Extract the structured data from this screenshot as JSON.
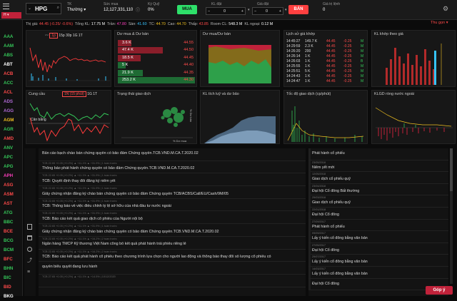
{
  "colors": {
    "up": "#35c759",
    "down": "#ff4a4a",
    "ref": "#f0c020",
    "ceil": "#ff3fbe",
    "floor": "#36c4ff",
    "buy": "#2ee06a",
    "sell": "#ff4040"
  },
  "topbar": {
    "menu_icon": "hamburger-icon",
    "tab_short": "H",
    "symbol": "HPG",
    "tk_label": "TK",
    "tk_value": "Thường",
    "suc_mua_label": "Sức mua",
    "suc_mua_value": "12,127,331,110",
    "ky_quy_label": "Ký Quỹ",
    "ky_quy_value": "0%",
    "buy_label": "MUA",
    "kl_dat_label": "KL đặt",
    "kl_dat_value": "0",
    "gia_dat_label": "Giá đặt",
    "gia_dat_value": "0",
    "sell_label": "BÁN",
    "gia_tri_label": "Giá trị lệnh",
    "gia_tri_value": "0"
  },
  "watchlist": [
    {
      "s": "AAA",
      "c": "g"
    },
    {
      "s": "AAM",
      "c": "g"
    },
    {
      "s": "ABS",
      "c": "g"
    },
    {
      "s": "ABT",
      "c": "w"
    },
    {
      "s": "ACB",
      "c": "r"
    },
    {
      "s": "ACC",
      "c": "g"
    },
    {
      "s": "ACL",
      "c": "r"
    },
    {
      "s": "ADS",
      "c": "pu"
    },
    {
      "s": "AGG",
      "c": "pu"
    },
    {
      "s": "AGM",
      "c": "y"
    },
    {
      "s": "AGR",
      "c": "g"
    },
    {
      "s": "AMD",
      "c": "r"
    },
    {
      "s": "ANV",
      "c": "g"
    },
    {
      "s": "APC",
      "c": "g"
    },
    {
      "s": "APG",
      "c": "g"
    },
    {
      "s": "APH",
      "c": "pk"
    },
    {
      "s": "ASG",
      "c": "r"
    },
    {
      "s": "ASM",
      "c": "r"
    },
    {
      "s": "AST",
      "c": "r"
    },
    {
      "s": "ATG",
      "c": "g"
    },
    {
      "s": "BBC",
      "c": "g"
    },
    {
      "s": "BCE",
      "c": "r"
    },
    {
      "s": "BCG",
      "c": "g"
    },
    {
      "s": "BCM",
      "c": "g"
    },
    {
      "s": "BFC",
      "c": "r"
    },
    {
      "s": "BHN",
      "c": "g"
    },
    {
      "s": "BIC",
      "c": "g"
    },
    {
      "s": "BID",
      "c": "r"
    },
    {
      "s": "BKG",
      "c": "w"
    }
  ],
  "status": {
    "gia_label": "Thị giá:",
    "gia_value": "44.45 (-0.25/ -0.6%)",
    "ck_label": "Thống kê:",
    "tkl_label": "Tổng KL:",
    "tkl_value": "17.75 M",
    "ttb_label": "Trần:",
    "ttb_value": "47.80",
    "sam_label": "Sàn:",
    "sam_value": "41.60",
    "tc_label": "TC:",
    "tc_value": "44.70",
    "cao_label": "Cao:",
    "cao_value": "44.70",
    "thap_label": "Thấp:",
    "thap_value": "43.85",
    "room_label": "Room CL:",
    "room_value": "548.3 M",
    "kl_ngoai_label": "KL ngoại:",
    "kl_ngoai_value": "0.12 M",
    "exchange": "Thu gọn"
  },
  "panels": {
    "p1": {
      "title": "",
      "tabs": [
        "1p",
        "15p",
        "30p",
        "1G",
        "1T"
      ]
    },
    "p2": {
      "title": "Dư mua & Dư bán"
    },
    "p3": {
      "title": "Dư mua/Dư bán"
    },
    "p4": {
      "title": "Lịch sử giá khớp"
    },
    "p5": {
      "title": "KL khớp theo giá"
    },
    "p6": {
      "title": "Cung cầu",
      "tabs": [
        "1N (15 phút)",
        "1G",
        "1T"
      ],
      "annotation": "Cân bằng"
    },
    "p7": {
      "title": "Trạng thái giao dịch",
      "axis": "% Dư mua",
      "axis_y": "% Dư bán"
    },
    "p8": {
      "title": "KL tích luỹ và dư bảo"
    },
    "p9": {
      "title": "Tốc độ giao dịch (cp/phút)"
    },
    "p10": {
      "title": "KLGD ròng nước ngoài"
    }
  },
  "orderbook": [
    {
      "p": "3.6 K",
      "v": "44.55",
      "side": "sell"
    },
    {
      "p": "47.4 K",
      "v": "44.50",
      "side": "sell"
    },
    {
      "p": "18.5 K",
      "v": "44.45",
      "side": "sell"
    },
    {
      "p": "5 K",
      "v": "44.40",
      "side": "buy"
    },
    {
      "p": "21.9 K",
      "v": "44.35",
      "side": "buy"
    },
    {
      "p": "253.2 K",
      "v": "44.30",
      "side": "buy"
    }
  ],
  "trades": [
    {
      "t": "14:45:27",
      "v": "149.7 K",
      "p": "44.45",
      "d": "-0.25",
      "s": "M"
    },
    {
      "t": "14:29:59",
      "v": "2.3 K",
      "p": "44.45",
      "d": "-0.25",
      "s": "M"
    },
    {
      "t": "14:26:20",
      "v": "200",
      "p": "44.45",
      "d": "-0.25",
      "s": "M"
    },
    {
      "t": "14:26:14",
      "v": "1 K",
      "p": "44.45",
      "d": "-0.25",
      "s": "M"
    },
    {
      "t": "14:26:03",
      "v": "1 K",
      "p": "44.45",
      "d": "-0.25",
      "s": "B"
    },
    {
      "t": "14:25:55",
      "v": "1 K",
      "p": "44.45",
      "d": "-0.25",
      "s": "M"
    },
    {
      "t": "14:25:51",
      "v": "5 K",
      "p": "44.45",
      "d": "-0.25",
      "s": "M"
    },
    {
      "t": "14:24:43",
      "v": "1 K",
      "p": "44.45",
      "d": "-0.25",
      "s": "M"
    },
    {
      "t": "14:24:47",
      "v": "1 K",
      "p": "44.45",
      "d": "-0.25",
      "s": "M"
    }
  ],
  "news": [
    {
      "m": "",
      "t": "Bản cáo bạch chào bán chứng quyền có bảo đảm Chứng quyền.TCB.VND.M.CA.T.2020.02"
    },
    {
      "m": "TCB 22.65 +0.05 (+0.2%) ▲ +11.1% ▲ +31.9% | 1 tuần trước",
      "t": "Thông báo phát hành chứng quyền có bảo đảm Chứng quyền.TCB.VND.M.CA.T.2020.02"
    },
    {
      "m": "TCB 22.65 +0.05 (+0.2%) ▲ +11.1% ▲ +31.9% | 1 tuần trước",
      "t": "TCB: Quyết định thay đổi đăng ký niêm yết"
    },
    {
      "m": "TCB 22.65 +0.05 (+0.2%) ▲ +11.1% ▲ +31.9% | 1 tuần trước",
      "t": "Giấy chứng nhận đăng ký chào bán chứng quyền có bảo đảm Chứng quyền TCB/ACBS/Call/EU/Cash/9M/05"
    },
    {
      "m": "TCB 22.65 +0.05 (+0.2%) ▲ +11.1% ▲ +31.9% | 1 tuần trước",
      "t": "TCB: Thông báo về việc điều chỉnh tỷ lệ sở hữu của nhà đầu tư nước ngoài"
    },
    {
      "m": "TCB 22.65 +0.05 (+0.2%) ▲ +11.1% ▲ +31.9% | 1 tuần trước",
      "t": "TCB: Báo cáo kết quả giao dịch cổ phiếu của Người nội bộ"
    },
    {
      "m": "TCB 22.65 +0.05 (+0.2%) ▲ +11.1% ▲ +31.9% | 1 tuần trước",
      "t": "Giấy chứng nhận đăng ký chào bán chứng quyền có bảo đảm Chứng quyền.TCB.VND.M.CA.T.2020.02"
    },
    {
      "m": "TCB 22.65 +0.05 (+0.2%) ▲ +11.1% ▲ +16.2% | 2 tuần trước",
      "t": "Ngân hàng TMCP Kỹ thương Việt Nam công bố kết quả phát hành trái phiếu riêng lẻ"
    },
    {
      "m": "TCB 22.65 +0.05 (+0.2%) ▲ +11.1% ▲ +16.2% | 2 tuần trước",
      "t": "TCB: Báo cáo kết quả phát hành cổ phiếu theo chương trình lựa chọn cho người lao động và thông báo thay đổi số lượng cổ phiếu có"
    },
    {
      "m": "",
      "t": "quyền biểu quyết đang lưu hành"
    },
    {
      "m": "TCB 27.65 +0.05 (+0.2%) ▲ +11.1% ▲ +14.5% | 10/12/2020",
      "t": ""
    }
  ],
  "events": [
    {
      "d": "",
      "t": "Phát hành cổ phiếu"
    },
    {
      "d": "23/05/2018",
      "t": "Niêm yết mới"
    },
    {
      "d": "12/05/2018",
      "t": "Giao dịch cổ phiếu quỹ"
    },
    {
      "d": "23/04/2018",
      "t": "Đại hội Cổ đông Bất thường"
    },
    {
      "d": "29/03/2018",
      "t": "Giao dịch cổ phiếu quỹ"
    },
    {
      "d": "22/01/2018",
      "t": "Đại hội Cổ đông"
    },
    {
      "d": "27/09/2017",
      "t": "Phát hành cổ phiếu"
    },
    {
      "d": "09/09/2017",
      "t": "Lấy ý kiến cổ đông bằng văn bản"
    },
    {
      "d": "27/05/2017",
      "t": "Đại hội Cổ đông"
    },
    {
      "d": "29/07/2017",
      "t": "Lấy ý kiến cổ đông bằng văn bản"
    },
    {
      "d": "14/03/2017",
      "t": "Lấy ý kiến cổ đông bằng văn bản"
    },
    {
      "d": "",
      "t": "Đại hội Cổ đông"
    }
  ],
  "support": "Góp ý"
}
